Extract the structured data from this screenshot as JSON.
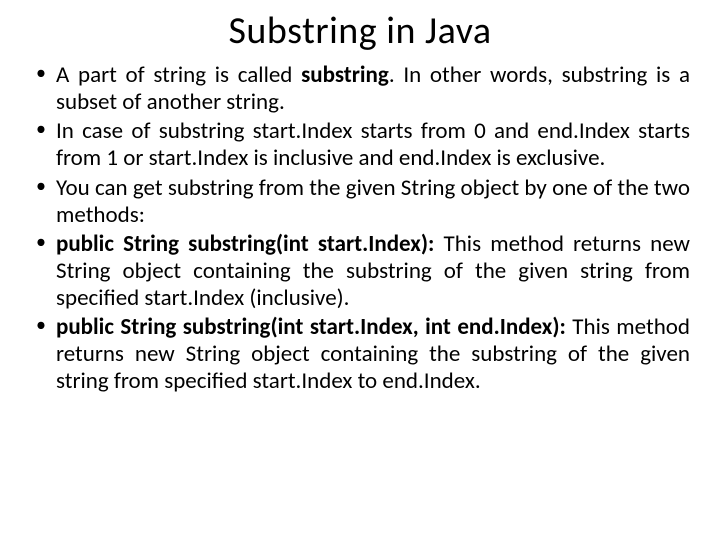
{
  "title": "Substring in Java",
  "bullets": [
    {
      "pre": "A part of string is called ",
      "bold": "substring",
      "post": ". In other words, substring is a subset of another string."
    },
    {
      "text": "In case of substring start.Index starts from 0 and end.Index starts from 1 or start.Index is inclusive and end.Index is exclusive."
    },
    {
      "text": "You can get substring from the given String object by one of the two methods:"
    },
    {
      "bold": "public String substring(int start.Index):",
      "post": " This method returns new String object containing the substring of the given string from specified start.Index (inclusive)."
    },
    {
      "bold": "public String substring(int start.Index, int end.Index):",
      "post": " This method returns new String object containing the substring of the given string from specified start.Index to end.Index."
    }
  ],
  "colors": {
    "background": "#ffffff",
    "text": "#000000"
  },
  "typography": {
    "title_fontsize": 38,
    "body_fontsize": 23,
    "font_family": "Calibri"
  }
}
